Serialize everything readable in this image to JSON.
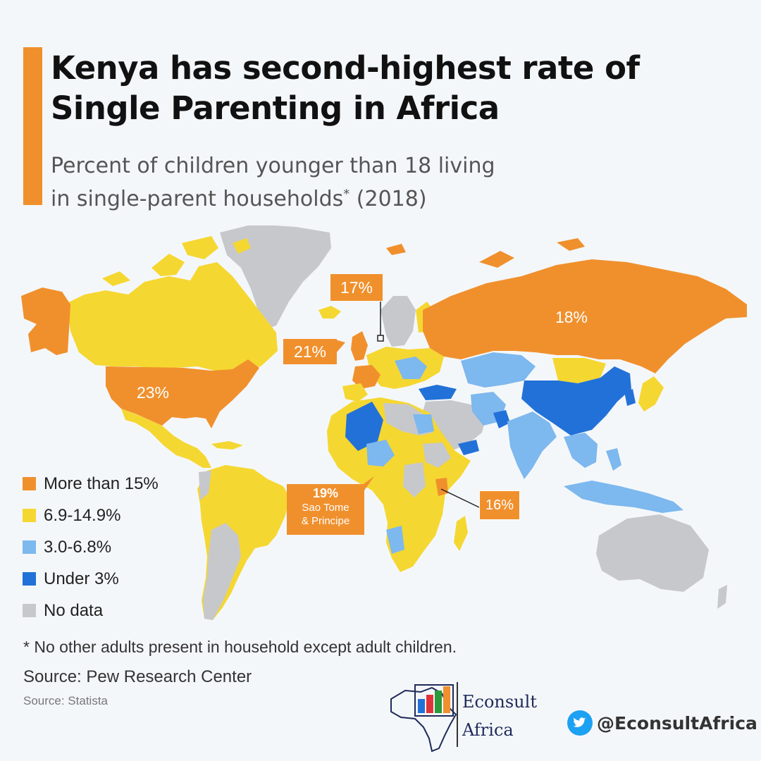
{
  "title_line1": "Kenya has second-highest rate of",
  "title_line2": "Single Parenting in Africa",
  "subtitle_line1": "Percent of children younger than 18 living",
  "subtitle_line2": "in single-parent households",
  "subtitle_mark": "*",
  "subtitle_year": " (2018)",
  "legend": [
    {
      "label": "More than 15%",
      "color": "#f0902d"
    },
    {
      "label": "6.9-14.9%",
      "color": "#f5d731"
    },
    {
      "label": "3.0-6.8%",
      "color": "#7db8ee"
    },
    {
      "label": "Under 3%",
      "color": "#2271d8"
    },
    {
      "label": "No data",
      "color": "#c7c8cc"
    }
  ],
  "callouts": {
    "usa": "23%",
    "russia": "18%",
    "uk": "21%",
    "denmark": "17%",
    "stp_value": "19%",
    "stp_name_1": "Sao Tome",
    "stp_name_2": "& Principe",
    "kenya": "16%"
  },
  "footnote": "* No other adults present in household except adult children.",
  "source1": "Source: Pew Research Center",
  "source2": "Source: Statista",
  "brand": {
    "line1": "Econsult",
    "line2": "Africa"
  },
  "twitter_handle": "@EconsultAfrica",
  "colors": {
    "accent": "#f0902d",
    "yellow": "#f5d731",
    "light_blue": "#7db8ee",
    "dark_blue": "#2271d8",
    "no_data": "#c7c8cc",
    "twitter": "#1da1f2"
  }
}
